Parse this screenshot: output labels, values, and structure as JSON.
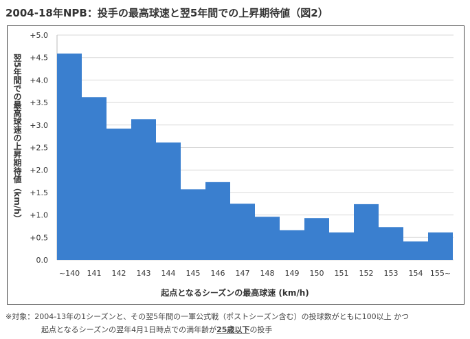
{
  "chart_data": {
    "type": "bar",
    "title": "2004-18年NPB：投手の最高球速と翌5年間での上昇期待値（図2）",
    "xlabel": "起点となるシーズンの最高球速 (km/h)",
    "ylabel": "翌5年間での最高球速の上昇期待値（km/h）",
    "categories": [
      "~140",
      "141",
      "142",
      "143",
      "144",
      "145",
      "146",
      "147",
      "148",
      "149",
      "150",
      "151",
      "152",
      "153",
      "154",
      "155~"
    ],
    "values": [
      4.59,
      3.62,
      2.92,
      3.13,
      2.61,
      1.57,
      1.73,
      1.25,
      0.96,
      0.66,
      0.93,
      0.61,
      1.24,
      0.73,
      0.41,
      0.61
    ],
    "ylim": [
      0,
      5
    ],
    "yticks": [
      "0.0",
      "+0.5",
      "+1.0",
      "+1.5",
      "+2.0",
      "+2.5",
      "+3.0",
      "+3.5",
      "+4.0",
      "+4.5",
      "+5.0"
    ],
    "grid": true,
    "bar_color": "#3a7fcf"
  },
  "notes": {
    "line1": "※対象：2004-13年の1シーズンと、その翌5年間の一軍公式戦（ポストシーズン含む）の投球数がともに100以上 かつ",
    "line2_pre": "起点となるシーズンの翌年4月1日時点での満年齢が",
    "line2_em": "25歳以下",
    "line2_post": "の投手"
  }
}
